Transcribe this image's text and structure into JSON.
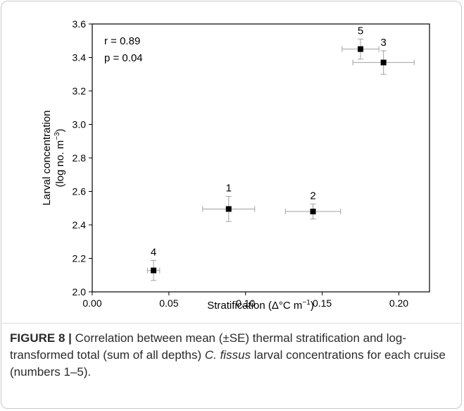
{
  "chart_data": {
    "type": "scatter",
    "xlabel_main": "Stratification (Δ°C m",
    "xlabel_sup": "−1",
    "xlabel_end": ")",
    "ylabel_line1": "Larval concentration",
    "ylabel_line2_main": "(log no. m",
    "ylabel_line2_sup": "−3",
    "ylabel_line2_end": ")",
    "xlim": [
      0.0,
      0.22
    ],
    "ylim": [
      2.0,
      3.6
    ],
    "xticks": [
      "0.00",
      "0.05",
      "0.10",
      "0.15",
      "0.20"
    ],
    "xtick_values": [
      0.0,
      0.05,
      0.1,
      0.15,
      0.2
    ],
    "yticks": [
      "2.0",
      "2.2",
      "2.4",
      "2.6",
      "2.8",
      "3.0",
      "3.2",
      "3.4",
      "3.6"
    ],
    "ytick_values": [
      2.0,
      2.2,
      2.4,
      2.6,
      2.8,
      3.0,
      3.2,
      3.4,
      3.6
    ],
    "points": [
      {
        "label": "1",
        "x": 0.089,
        "y": 2.495,
        "xerr": 0.017,
        "yerr": 0.075
      },
      {
        "label": "2",
        "x": 0.144,
        "y": 2.48,
        "xerr": 0.018,
        "yerr": 0.045
      },
      {
        "label": "3",
        "x": 0.19,
        "y": 3.37,
        "xerr": 0.02,
        "yerr": 0.07
      },
      {
        "label": "4",
        "x": 0.04,
        "y": 2.128,
        "xerr": 0.004,
        "yerr": 0.06
      },
      {
        "label": "5",
        "x": 0.175,
        "y": 3.45,
        "xerr": 0.012,
        "yerr": 0.06
      }
    ],
    "annotations": [
      "r = 0.89",
      "p = 0.04"
    ],
    "marker_color": "#000000",
    "errorbar_color": "#a0a0a0",
    "grid": false
  },
  "caption": {
    "label": "FIGURE 8 |",
    "text": " Correlation between mean (±SE) thermal stratification and log-transformed total (sum of all depths) ",
    "species": "C. fissus",
    "text_end": " larval concentrations for each cruise (numbers 1–5)."
  }
}
